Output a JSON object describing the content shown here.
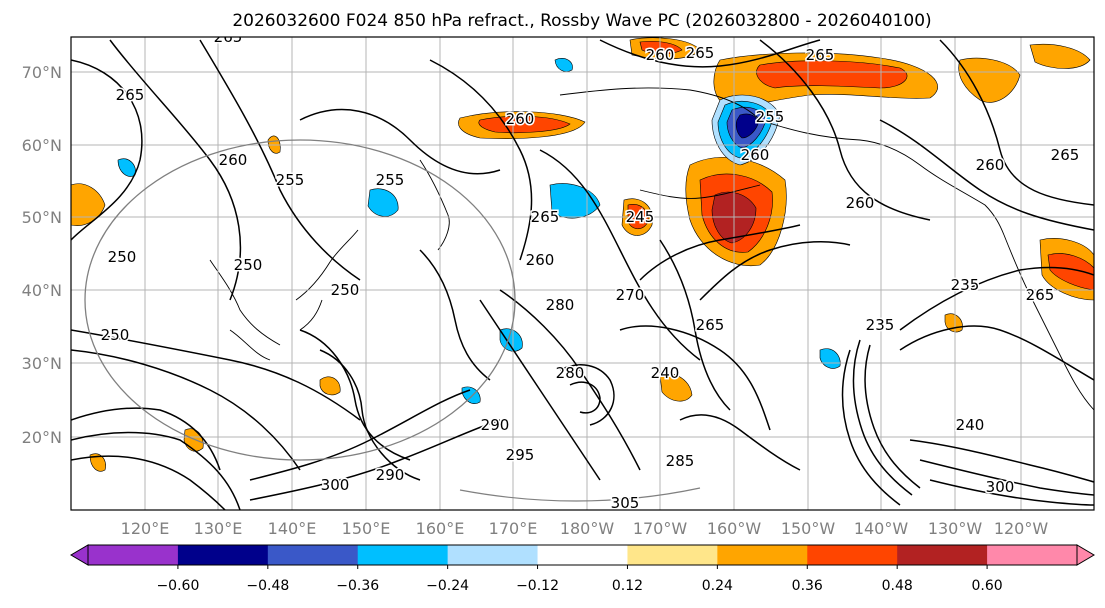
{
  "title": "2026032600 F024 850 hPa refract., Rossby Wave PC (2026032800 - 2026040100)",
  "map": {
    "lat_labels": [
      "70°N",
      "60°N",
      "50°N",
      "40°N",
      "30°N",
      "20°N"
    ],
    "lon_labels": [
      "120°E",
      "130°E",
      "140°E",
      "150°E",
      "160°E",
      "170°E",
      "180°W",
      "170°W",
      "160°W",
      "150°W",
      "140°W",
      "130°W",
      "120°W"
    ],
    "tick_label_color": "#808080"
  },
  "contours": {
    "labels": [
      "265",
      "265",
      "265",
      "260",
      "260",
      "265",
      "255",
      "250",
      "265",
      "260",
      "260",
      "260",
      "255",
      "265",
      "255",
      "265",
      "235",
      "250",
      "250",
      "280",
      "260",
      "240",
      "260",
      "250",
      "270",
      "245",
      "280",
      "235",
      "240",
      "290",
      "300",
      "305",
      "300",
      "285",
      "295",
      "265",
      "290"
    ]
  },
  "colorbar": {
    "colors": [
      "#9932cc",
      "#00008b",
      "#3a58c8",
      "#00bfff",
      "#b0e0ff",
      "#ffffff",
      "#ffe68a",
      "#ffa500",
      "#ff4500",
      "#b22222",
      "#ff88aa"
    ],
    "tick_labels": [
      "−0.60",
      "−0.48",
      "−0.36",
      "−0.24",
      "−0.12",
      "0.12",
      "0.24",
      "0.36",
      "0.48",
      "0.60"
    ]
  },
  "fill_colors": {
    "neg_strong": "#00008b",
    "neg_mid": "#3a58c8",
    "neg_light": "#00bfff",
    "neg_faint": "#b0e0ff",
    "pos_faint": "#ffe68a",
    "pos_light": "#ffa500",
    "pos_mid": "#ff4500",
    "pos_strong": "#b22222"
  }
}
